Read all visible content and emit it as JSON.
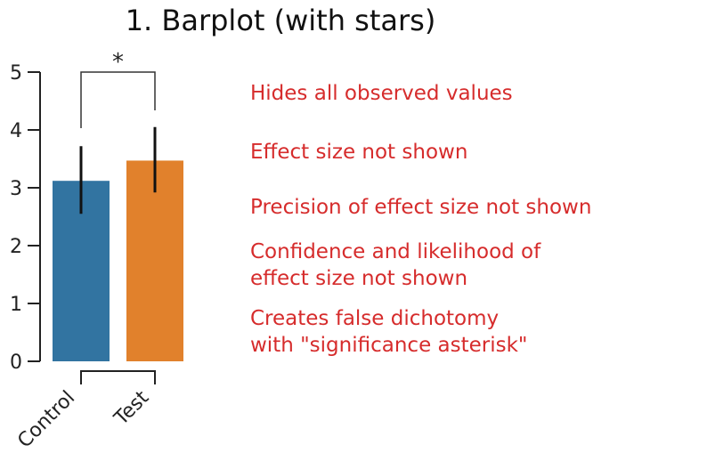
{
  "chart_data": {
    "type": "bar",
    "title": "1. Barplot (with stars)",
    "xlabel": "",
    "ylabel": "",
    "ylim": [
      0,
      5
    ],
    "yticks": [
      0,
      1,
      2,
      3,
      4,
      5
    ],
    "grid": false,
    "categories": [
      "Control",
      "Test"
    ],
    "values": [
      3.12,
      3.47
    ],
    "error_low": [
      2.55,
      2.92
    ],
    "error_high": [
      3.72,
      4.05
    ],
    "colors": [
      "#3274a1",
      "#e1812c"
    ],
    "significance": {
      "between": [
        "Control",
        "Test"
      ],
      "label": "*"
    }
  },
  "annotations": [
    {
      "id": "hides-values",
      "lines": [
        "Hides all observed values"
      ]
    },
    {
      "id": "effect-size",
      "lines": [
        "Effect size not shown"
      ]
    },
    {
      "id": "precision",
      "lines": [
        "Precision of effect size not shown"
      ]
    },
    {
      "id": "confidence",
      "lines": [
        "Confidence and likelihood of",
        "effect size not shown"
      ]
    },
    {
      "id": "dichotomy",
      "lines": [
        "Creates false dichotomy",
        "with \"significance asterisk\""
      ]
    }
  ],
  "colors": {
    "annotation": "#d62c2c"
  }
}
